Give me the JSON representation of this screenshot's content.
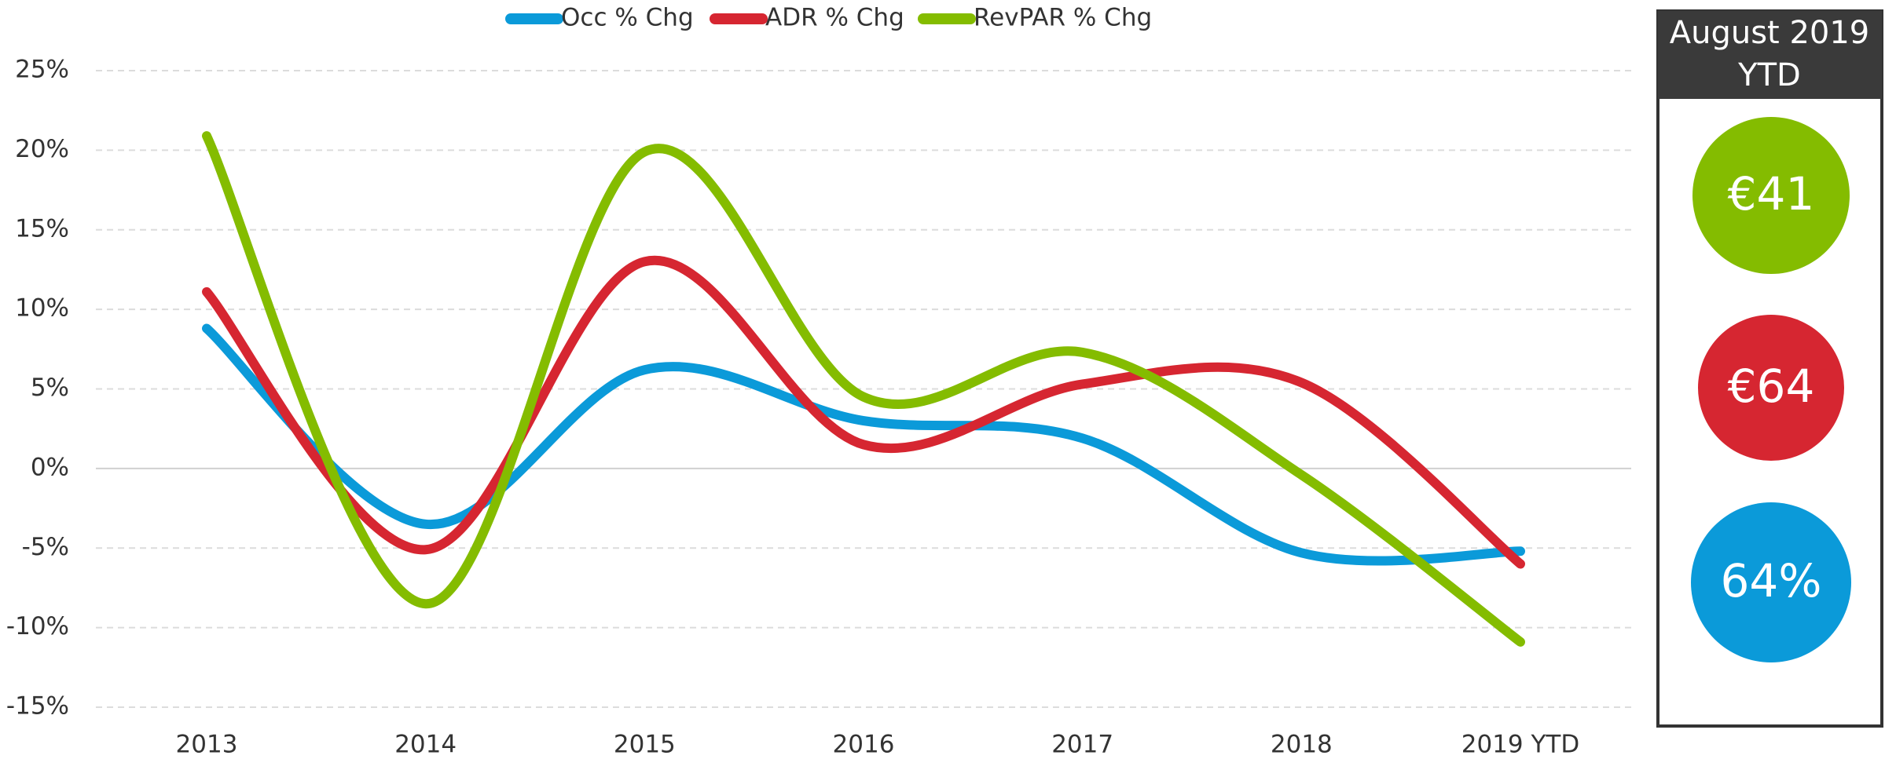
{
  "chart_data": {
    "type": "line",
    "categories": [
      "2013",
      "2014",
      "2015",
      "2016",
      "2017",
      "2018",
      "2019 YTD"
    ],
    "series": [
      {
        "name": "Occ % Chg",
        "color": "#0b9ad9",
        "values": [
          8.8,
          -3.5,
          6.2,
          3.0,
          1.9,
          -5.3,
          -5.2
        ]
      },
      {
        "name": "ADR % Chg",
        "color": "#d62631",
        "values": [
          11.1,
          -5.1,
          13.0,
          1.5,
          5.3,
          5.4,
          -6.0
        ]
      },
      {
        "name": "RevPAR % Chg",
        "color": "#84bc00",
        "values": [
          20.9,
          -8.5,
          19.9,
          4.5,
          7.3,
          -0.4,
          -10.9
        ]
      }
    ],
    "ylim": [
      -15,
      25
    ],
    "yticks": [
      {
        "value": -15,
        "label": "-15%"
      },
      {
        "value": -10,
        "label": "-10%"
      },
      {
        "value": -5,
        "label": "-5%"
      },
      {
        "value": 0,
        "label": "0%"
      },
      {
        "value": 5,
        "label": "5%"
      },
      {
        "value": 10,
        "label": "10%"
      },
      {
        "value": 15,
        "label": "15%"
      },
      {
        "value": 20,
        "label": "20%"
      },
      {
        "value": 25,
        "label": "25%"
      }
    ],
    "grid": true,
    "legend": "top"
  },
  "panel": {
    "title": [
      "August 2019",
      "YTD"
    ],
    "kpis": [
      {
        "text": "€41",
        "color": "#84bc00"
      },
      {
        "text": "€64",
        "color": "#d62631"
      },
      {
        "text": "64%",
        "color": "#0b9ad9"
      }
    ]
  }
}
